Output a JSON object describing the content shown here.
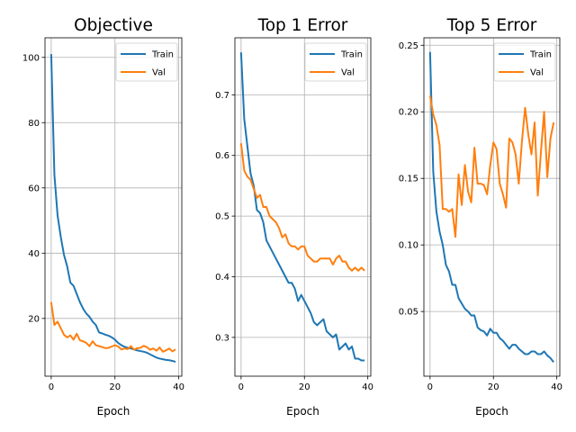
{
  "figure": {
    "colors": {
      "train": "#1f77b4",
      "val": "#ff7f0e",
      "grid": "#b0b0b0",
      "axis": "#000000"
    }
  },
  "chart_data": [
    {
      "type": "line",
      "title": "Objective",
      "xlabel": "Epoch",
      "ylabel": "",
      "xlim": [
        -1.95,
        40.95
      ],
      "ylim": [
        2.3,
        106
      ],
      "xticks": [
        0,
        20,
        40
      ],
      "yticks": [
        20,
        40,
        60,
        80,
        100
      ],
      "ytick_labels": [
        "20",
        "40",
        "60",
        "80",
        "100"
      ],
      "grid": true,
      "legend": "top-right",
      "x": [
        0,
        1,
        2,
        3,
        4,
        5,
        6,
        7,
        8,
        9,
        10,
        11,
        12,
        13,
        14,
        15,
        16,
        17,
        18,
        19,
        20,
        21,
        22,
        23,
        24,
        25,
        26,
        27,
        28,
        29,
        30,
        31,
        32,
        33,
        34,
        35,
        36,
        37,
        38,
        39
      ],
      "series": [
        {
          "name": "Train",
          "values": [
            101,
            64,
            51.5,
            45,
            39.5,
            36,
            31,
            30,
            27.5,
            25,
            23,
            21.5,
            20.5,
            19,
            18,
            15.7,
            15.4,
            15,
            14.7,
            14.2,
            13.5,
            12.5,
            11.8,
            11.3,
            11,
            10.8,
            10.5,
            10.2,
            10,
            9.8,
            9.5,
            9,
            8.5,
            8,
            7.7,
            7.5,
            7.3,
            7.2,
            7,
            6.7
          ]
        },
        {
          "name": "Val",
          "values": [
            25,
            18,
            19,
            17,
            15,
            14.2,
            14.8,
            13.5,
            15.3,
            13.3,
            13,
            12.5,
            11.5,
            13,
            11.8,
            11.5,
            11.2,
            10.9,
            11,
            11.4,
            11.8,
            11.4,
            10.5,
            10.8,
            10.6,
            11.5,
            10.4,
            10.9,
            11,
            11.6,
            11.2,
            10.4,
            10.8,
            10.1,
            11.1,
            9.8,
            10.2,
            10.8,
            9.9,
            10.5
          ]
        }
      ]
    },
    {
      "type": "line",
      "title": "Top 1 Error",
      "xlabel": "Epoch",
      "ylabel": "",
      "xlim": [
        -1.95,
        40.95
      ],
      "ylim": [
        0.236,
        0.794
      ],
      "xticks": [
        0,
        20,
        40
      ],
      "yticks": [
        0.3,
        0.4,
        0.5,
        0.6,
        0.7
      ],
      "ytick_labels": [
        "0.3",
        "0.4",
        "0.5",
        "0.6",
        "0.7"
      ],
      "grid": true,
      "legend": "top-right",
      "x": [
        0,
        1,
        2,
        3,
        4,
        5,
        6,
        7,
        8,
        9,
        10,
        11,
        12,
        13,
        14,
        15,
        16,
        17,
        18,
        19,
        20,
        21,
        22,
        23,
        24,
        25,
        26,
        27,
        28,
        29,
        30,
        31,
        32,
        33,
        34,
        35,
        36,
        37,
        38,
        39
      ],
      "series": [
        {
          "name": "Train",
          "values": [
            0.77,
            0.66,
            0.615,
            0.57,
            0.55,
            0.51,
            0.505,
            0.49,
            0.46,
            0.45,
            0.44,
            0.43,
            0.42,
            0.41,
            0.4,
            0.39,
            0.39,
            0.38,
            0.36,
            0.37,
            0.36,
            0.35,
            0.34,
            0.325,
            0.32,
            0.325,
            0.33,
            0.31,
            0.305,
            0.3,
            0.305,
            0.28,
            0.285,
            0.29,
            0.28,
            0.285,
            0.265,
            0.265,
            0.262,
            0.262
          ]
        },
        {
          "name": "Val",
          "values": [
            0.62,
            0.575,
            0.565,
            0.56,
            0.545,
            0.53,
            0.535,
            0.515,
            0.515,
            0.5,
            0.495,
            0.49,
            0.48,
            0.465,
            0.47,
            0.455,
            0.45,
            0.45,
            0.445,
            0.45,
            0.45,
            0.435,
            0.43,
            0.425,
            0.425,
            0.43,
            0.43,
            0.43,
            0.43,
            0.42,
            0.43,
            0.435,
            0.425,
            0.425,
            0.415,
            0.41,
            0.415,
            0.41,
            0.415,
            0.41
          ]
        }
      ]
    },
    {
      "type": "line",
      "title": "Top 5 Error",
      "xlabel": "Epoch",
      "ylabel": "",
      "xlim": [
        -1.95,
        40.95
      ],
      "ylim": [
        0.0014,
        0.2556
      ],
      "xticks": [
        0,
        20,
        40
      ],
      "yticks": [
        0.05,
        0.1,
        0.15,
        0.2,
        0.25
      ],
      "ytick_labels": [
        "0.05",
        "0.10",
        "0.15",
        "0.20",
        "0.25"
      ],
      "grid": true,
      "legend": "top-right",
      "x": [
        0,
        1,
        2,
        3,
        4,
        5,
        6,
        7,
        8,
        9,
        10,
        11,
        12,
        13,
        14,
        15,
        16,
        17,
        18,
        19,
        20,
        21,
        22,
        23,
        24,
        25,
        26,
        27,
        28,
        29,
        30,
        31,
        32,
        33,
        34,
        35,
        36,
        37,
        38,
        39
      ],
      "series": [
        {
          "name": "Train",
          "values": [
            0.245,
            0.155,
            0.125,
            0.11,
            0.1,
            0.085,
            0.08,
            0.07,
            0.07,
            0.06,
            0.056,
            0.052,
            0.05,
            0.047,
            0.047,
            0.038,
            0.036,
            0.035,
            0.032,
            0.037,
            0.034,
            0.034,
            0.03,
            0.028,
            0.025,
            0.022,
            0.025,
            0.025,
            0.022,
            0.02,
            0.018,
            0.018,
            0.02,
            0.02,
            0.018,
            0.018,
            0.02,
            0.017,
            0.015,
            0.012
          ]
        },
        {
          "name": "Val",
          "values": [
            0.212,
            0.198,
            0.19,
            0.175,
            0.127,
            0.127,
            0.125,
            0.127,
            0.106,
            0.153,
            0.13,
            0.16,
            0.14,
            0.132,
            0.173,
            0.146,
            0.146,
            0.145,
            0.138,
            0.16,
            0.177,
            0.172,
            0.146,
            0.138,
            0.128,
            0.18,
            0.177,
            0.168,
            0.146,
            0.178,
            0.203,
            0.183,
            0.168,
            0.192,
            0.137,
            0.17,
            0.2,
            0.151,
            0.18,
            0.192
          ]
        }
      ]
    }
  ]
}
